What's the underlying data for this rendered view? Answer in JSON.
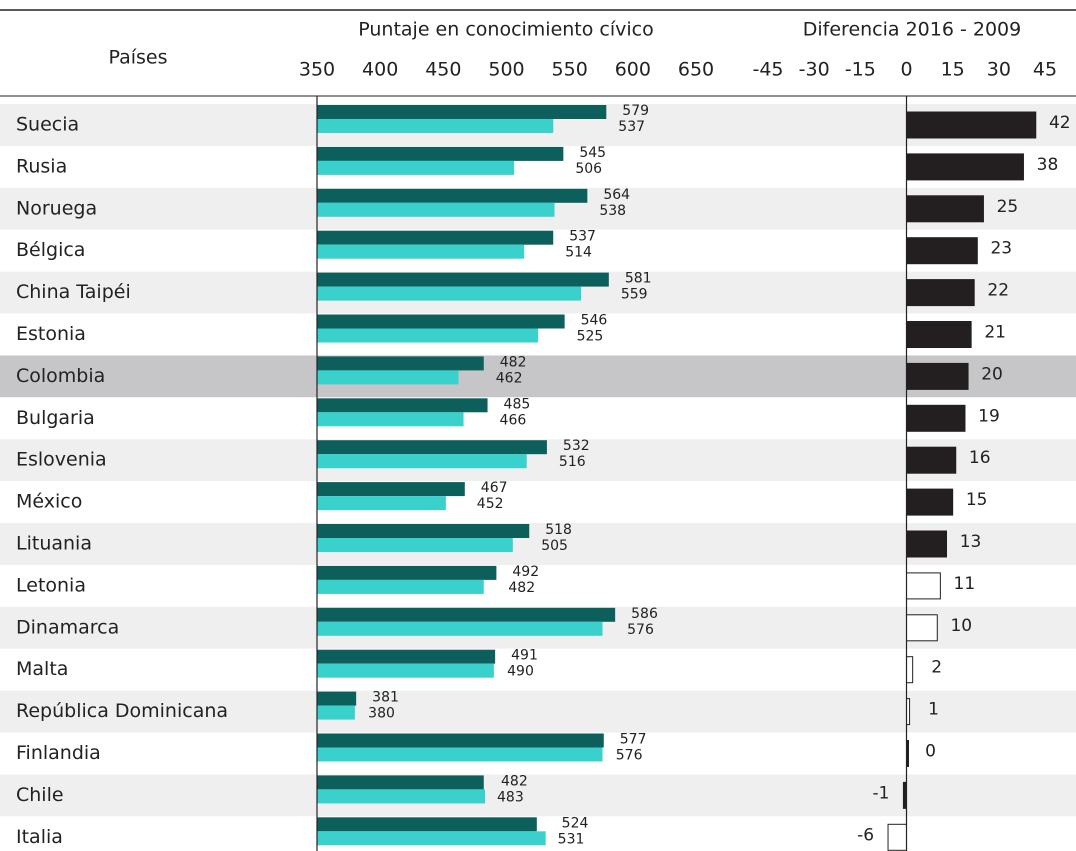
{
  "chart_data": [
    {
      "type": "bar",
      "orientation": "horizontal",
      "title": "Puntaje en conocimiento cívico",
      "category_label": "Países",
      "highlight": "Colombia",
      "categories": [
        "Suecia",
        "Rusia",
        "Noruega",
        "Bélgica",
        "China Taipéi",
        "Estonia",
        "Colombia",
        "Bulgaria",
        "Eslovenia",
        "México",
        "Lituania",
        "Letonia",
        "Dinamarca",
        "Malta",
        "República Dominicana",
        "Finlandia",
        "Chile",
        "Italia"
      ],
      "series": [
        {
          "color": "#0d5f5c",
          "values": [
            579,
            545,
            564,
            537,
            581,
            546,
            482,
            485,
            532,
            467,
            518,
            492,
            586,
            491,
            381,
            577,
            482,
            524
          ]
        },
        {
          "color": "#3ad0cb",
          "values": [
            537,
            506,
            538,
            514,
            559,
            525,
            462,
            466,
            516,
            452,
            505,
            482,
            576,
            490,
            380,
            576,
            483,
            531
          ]
        }
      ],
      "xlim": [
        350,
        650
      ],
      "xticks": [
        350,
        400,
        450,
        500,
        550,
        600,
        650
      ]
    },
    {
      "type": "bar",
      "orientation": "horizontal",
      "title": "Diferencia 2016 - 2009",
      "values": [
        42,
        38,
        25,
        23,
        22,
        21,
        20,
        19,
        16,
        15,
        13,
        11,
        10,
        2,
        1,
        0,
        -1,
        -6
      ],
      "colors": [
        "#231f20",
        "#231f20",
        "#231f20",
        "#231f20",
        "#231f20",
        "#231f20",
        "#231f20",
        "#231f20",
        "#231f20",
        "#231f20",
        "#231f20",
        "#ffffff",
        "#ffffff",
        "#ffffff",
        "#ffffff",
        "#231f20",
        "#231f20",
        "#ffffff"
      ],
      "xlim": [
        -45,
        45
      ],
      "xticks": [
        -45,
        -30,
        -15,
        0,
        15,
        30,
        45
      ]
    }
  ]
}
